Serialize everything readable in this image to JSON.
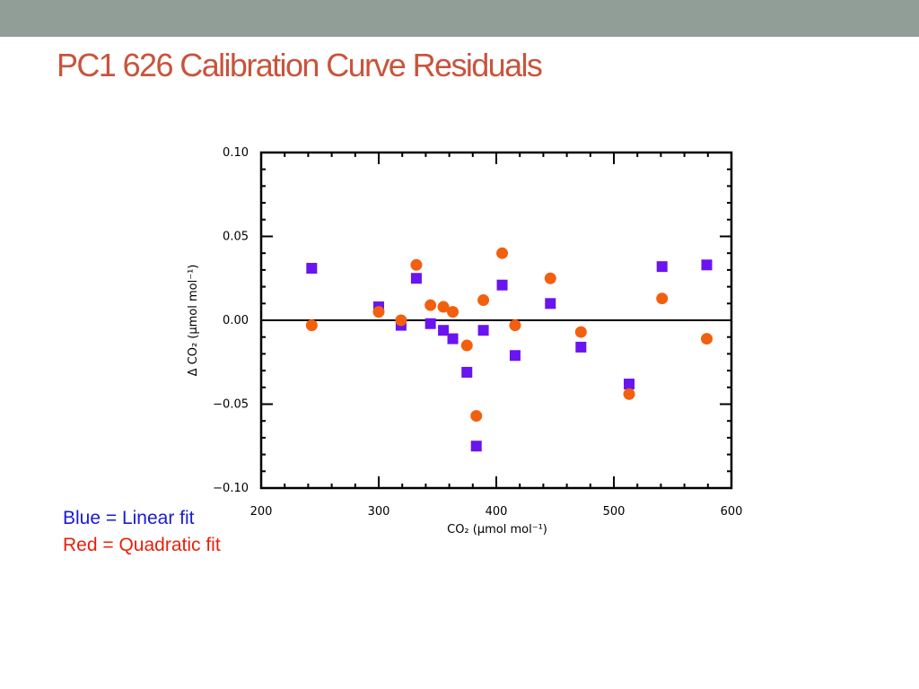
{
  "slide": {
    "title": "PC1 626 Calibration Curve Residuals"
  },
  "notes": {
    "linear": "Blue = Linear fit",
    "quadratic": "Red = Quadratic fit"
  },
  "colors": {
    "topbar": "#919e98",
    "title": "#c8543c",
    "linear": "#6a14f0",
    "quadratic": "#f2600f"
  },
  "chart_data": {
    "type": "scatter",
    "title": "",
    "xlabel": "CO₂ (μmol mol⁻¹)",
    "ylabel": "Δ CO₂ (μmol mol⁻¹)",
    "xlim": [
      200,
      600
    ],
    "ylim": [
      -0.1,
      0.1
    ],
    "x_ticks": [
      200,
      300,
      400,
      500,
      600
    ],
    "x_tick_labels": [
      "200",
      "300",
      "400",
      "500",
      "600"
    ],
    "y_ticks": [
      -0.1,
      -0.05,
      0.0,
      0.05,
      0.1
    ],
    "y_tick_labels": [
      "−0.10",
      "−0.05",
      "0.00",
      "0.05",
      "0.10"
    ],
    "reference_line_y": 0,
    "grid": false,
    "series": [
      {
        "marker": "square",
        "color": "#6a14f0",
        "points": [
          [
            243,
            0.031
          ],
          [
            300,
            0.008
          ],
          [
            319,
            -0.003
          ],
          [
            332,
            0.025
          ],
          [
            344,
            -0.002
          ],
          [
            355,
            -0.006
          ],
          [
            363,
            -0.011
          ],
          [
            375,
            -0.031
          ],
          [
            383,
            -0.075
          ],
          [
            389,
            -0.006
          ],
          [
            405,
            0.021
          ],
          [
            416,
            -0.021
          ],
          [
            446,
            0.01
          ],
          [
            472,
            -0.016
          ],
          [
            513,
            -0.038
          ],
          [
            541,
            0.032
          ],
          [
            579,
            0.033
          ]
        ]
      },
      {
        "marker": "circle",
        "color": "#f2600f",
        "points": [
          [
            243,
            -0.003
          ],
          [
            300,
            0.005
          ],
          [
            319,
            0.0
          ],
          [
            332,
            0.033
          ],
          [
            344,
            0.009
          ],
          [
            355,
            0.008
          ],
          [
            363,
            0.005
          ],
          [
            375,
            -0.015
          ],
          [
            383,
            -0.057
          ],
          [
            389,
            0.012
          ],
          [
            405,
            0.04
          ],
          [
            416,
            -0.003
          ],
          [
            446,
            0.025
          ],
          [
            472,
            -0.007
          ],
          [
            513,
            -0.044
          ],
          [
            541,
            0.013
          ],
          [
            579,
            -0.011
          ]
        ]
      }
    ]
  }
}
